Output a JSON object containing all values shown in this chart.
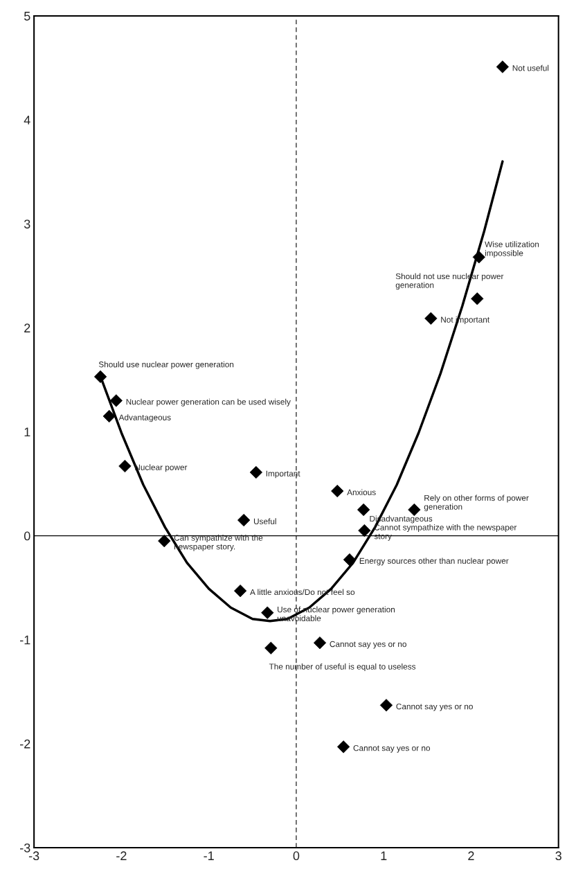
{
  "chart_data": {
    "type": "scatter",
    "xlim": [
      -3,
      3
    ],
    "ylim": [
      -3,
      5
    ],
    "xticks": [
      -3,
      -2,
      -1,
      0,
      1,
      2,
      3
    ],
    "yticks": [
      -3,
      -2,
      -1,
      0,
      1,
      2,
      3,
      4,
      5
    ],
    "grid": false,
    "legend": false,
    "ref_lines": [
      {
        "axis": "x",
        "value": 0,
        "color": "#000000",
        "line_style": "dashed"
      },
      {
        "axis": "y",
        "value": 0,
        "color": "#000000",
        "line_style": "solid"
      }
    ],
    "series": [
      {
        "type": "scatter",
        "color": "#000000",
        "marker": "diamond",
        "x": [
          2.36,
          2.09,
          2.07,
          1.54,
          -2.24,
          -2.06,
          -2.14,
          -1.96,
          -0.46,
          0.47,
          0.77,
          1.35,
          -0.6,
          0.78,
          -1.51,
          0.61,
          -0.64,
          -0.33,
          0.27,
          -0.29,
          1.03,
          0.54
        ],
        "values": [
          4.51,
          2.68,
          2.28,
          2.09,
          1.53,
          1.3,
          1.15,
          0.67,
          0.61,
          0.43,
          0.25,
          0.25,
          0.15,
          0.05,
          -0.05,
          -0.23,
          -0.53,
          -0.74,
          -1.03,
          -1.08,
          -1.63,
          -2.03
        ]
      },
      {
        "type": "line",
        "color": "#000000",
        "marker": "none",
        "line_style": "solid",
        "x": [
          -2.23,
          -2.0,
          -1.75,
          -1.5,
          -1.25,
          -1.0,
          -0.75,
          -0.5,
          -0.3,
          -0.1,
          0.15,
          0.4,
          0.65,
          0.9,
          1.15,
          1.4,
          1.65,
          1.9,
          2.15,
          2.36
        ],
        "values": [
          1.51,
          0.99,
          0.49,
          0.08,
          -0.26,
          -0.51,
          -0.69,
          -0.8,
          -0.82,
          -0.8,
          -0.69,
          -0.51,
          -0.26,
          0.08,
          0.49,
          0.99,
          1.56,
          2.21,
          2.93,
          3.6
        ]
      }
    ],
    "annotations": [
      {
        "text": "Not useful",
        "x": 2.36,
        "y": 4.51
      },
      {
        "text": "Wise utilization\nimpossible",
        "x": 2.09,
        "y": 2.68
      },
      {
        "text": "Should not use nuclear power\ngeneration",
        "x": 2.07,
        "y": 2.28
      },
      {
        "text": "Not important",
        "x": 1.54,
        "y": 2.09
      },
      {
        "text": "Should use nuclear power generation",
        "x": -2.24,
        "y": 1.53
      },
      {
        "text": "Nuclear power generation can be used wisely",
        "x": -2.06,
        "y": 1.3
      },
      {
        "text": "Advantageous",
        "x": -2.14,
        "y": 1.15
      },
      {
        "text": "Nuclear power",
        "x": -1.96,
        "y": 0.67
      },
      {
        "text": "Important",
        "x": -0.46,
        "y": 0.61
      },
      {
        "text": "Anxious",
        "x": 0.47,
        "y": 0.43
      },
      {
        "text": "Disadvantageous",
        "x": 0.77,
        "y": 0.25
      },
      {
        "text": "Rely on other forms of power\ngeneration",
        "x": 1.35,
        "y": 0.25
      },
      {
        "text": "Useful",
        "x": -0.6,
        "y": 0.15
      },
      {
        "text": "Cannot sympathize with the newspaper\nstory",
        "x": 0.78,
        "y": 0.05
      },
      {
        "text": "Can sympathize with the\nnewspaper story.",
        "x": -1.51,
        "y": -0.05
      },
      {
        "text": "Energy sources other than nuclear power",
        "x": 0.61,
        "y": -0.23
      },
      {
        "text": "A little anxious/Do not feel so",
        "x": -0.64,
        "y": -0.53
      },
      {
        "text": "Use of nuclear power generation\nunavoidable",
        "x": -0.33,
        "y": -0.74
      },
      {
        "text": "Cannot say yes or no",
        "x": 0.27,
        "y": -1.03
      },
      {
        "text": "The number of useful is equal to useless",
        "x": -0.29,
        "y": -1.08
      },
      {
        "text": "Cannot say yes or no",
        "x": 1.03,
        "y": -1.63
      },
      {
        "text": "Cannot say yes or no",
        "x": 0.54,
        "y": -2.03
      }
    ]
  }
}
